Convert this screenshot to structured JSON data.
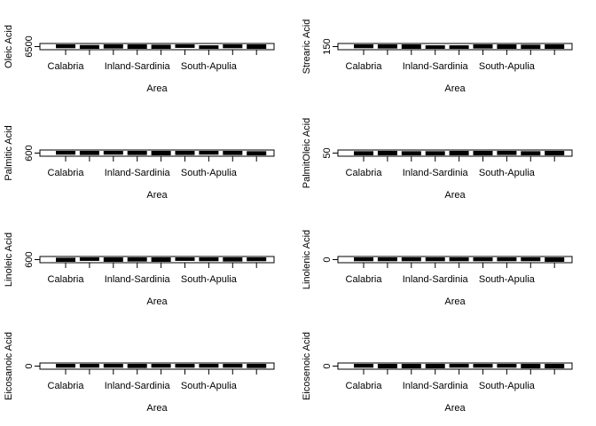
{
  "chart_data": [
    {
      "type": "box",
      "ylabel": "Oleic Acid",
      "xlabel": "Area",
      "categories": [
        "Calabria",
        null,
        null,
        "Inland-Sardinia",
        null,
        null,
        "South-Apulia",
        null,
        null
      ],
      "values": [
        6520,
        6480,
        6510,
        6500,
        6490,
        6530,
        6470,
        6520,
        6500
      ],
      "color": "#000000",
      "ylim": [
        6400,
        6600
      ],
      "yticks": [
        6500
      ]
    },
    {
      "type": "box",
      "ylabel": "Strearic Acid",
      "xlabel": "Area",
      "categories": [
        "Calabria",
        null,
        null,
        "Inland-Sardinia",
        null,
        null,
        "South-Apulia",
        null,
        null
      ],
      "values": [
        152,
        151,
        150,
        147,
        147,
        151,
        150,
        149,
        150
      ],
      "color": "#000000",
      "ylim": [
        140,
        160
      ],
      "yticks": [
        150
      ]
    },
    {
      "type": "box",
      "ylabel": "Palmitic Acid",
      "xlabel": "Area",
      "categories": [
        "Calabria",
        null,
        null,
        "Inland-Sardinia",
        null,
        null,
        "South-Apulia",
        null,
        null
      ],
      "values": [
        602,
        601,
        602,
        601,
        600,
        601,
        602,
        601,
        599
      ],
      "color": "#000000",
      "ylim": [
        590,
        610
      ],
      "yticks": [
        600
      ]
    },
    {
      "type": "box",
      "ylabel": "PalmitOleic Acid",
      "xlabel": "Area",
      "categories": [
        "Calabria",
        null,
        null,
        "Inland-Sardinia",
        null,
        null,
        "South-Apulia",
        null,
        null
      ],
      "values": [
        49,
        50,
        49,
        49,
        50,
        50,
        51,
        49,
        50
      ],
      "color": "#000000",
      "ylim": [
        40,
        60
      ],
      "yticks": [
        50
      ]
    },
    {
      "type": "box",
      "ylabel": "Linoleic Acid",
      "xlabel": "Area",
      "categories": [
        "Calabria",
        null,
        null,
        "Inland-Sardinia",
        null,
        null,
        "South-Apulia",
        null,
        null
      ],
      "values": [
        599,
        603,
        600,
        601,
        600,
        603,
        602,
        601,
        602
      ],
      "color": "#000000",
      "ylim": [
        590,
        610
      ],
      "yticks": [
        600
      ]
    },
    {
      "type": "box",
      "ylabel": "Linolenic Acid",
      "xlabel": "Area",
      "categories": [
        "Calabria",
        null,
        null,
        "Inland-Sardinia",
        null,
        null,
        "South-Apulia",
        null,
        null
      ],
      "values": [
        2,
        2,
        2,
        2,
        2,
        2,
        2,
        2,
        0
      ],
      "color": "#000000",
      "ylim": [
        -10,
        10
      ],
      "yticks": [
        0
      ]
    },
    {
      "type": "box",
      "ylabel": "Eicosanoic Acid",
      "xlabel": "Area",
      "categories": [
        "Calabria",
        null,
        null,
        "Inland-Sardinia",
        null,
        null,
        "South-Apulia",
        null,
        null
      ],
      "values": [
        2,
        2,
        2,
        1,
        2,
        2,
        2,
        2,
        1
      ],
      "color": "#000000",
      "ylim": [
        -10,
        10
      ],
      "yticks": [
        0
      ]
    },
    {
      "type": "box",
      "ylabel": "Eicosenoic Acid",
      "xlabel": "Area",
      "categories": [
        "Calabria",
        null,
        null,
        "Inland-Sardinia",
        null,
        null,
        "South-Apulia",
        null,
        null
      ],
      "values": [
        2,
        0,
        0,
        0,
        2,
        2,
        2,
        0,
        0
      ],
      "color": "#000000",
      "ylim": [
        -10,
        10
      ],
      "yticks": [
        0
      ]
    }
  ]
}
